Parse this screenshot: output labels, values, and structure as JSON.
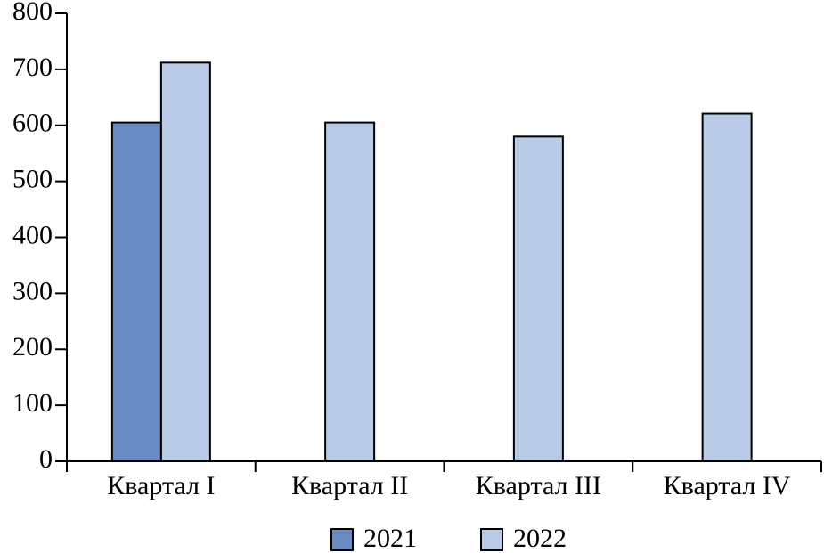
{
  "chart_data": {
    "type": "bar",
    "categories": [
      "Квартал I",
      "Квартал II",
      "Квартал III",
      "Квартал IV"
    ],
    "series": [
      {
        "name": "2021",
        "color": "#6b8cc2",
        "values": [
          605,
          null,
          null,
          null
        ]
      },
      {
        "name": "2022",
        "color": "#b9cbe6",
        "values": [
          712,
          605,
          580,
          621
        ]
      }
    ],
    "ylim": [
      0,
      800
    ],
    "yticks": [
      0,
      100,
      200,
      300,
      400,
      500,
      600,
      700,
      800
    ],
    "legend": "bottom"
  }
}
